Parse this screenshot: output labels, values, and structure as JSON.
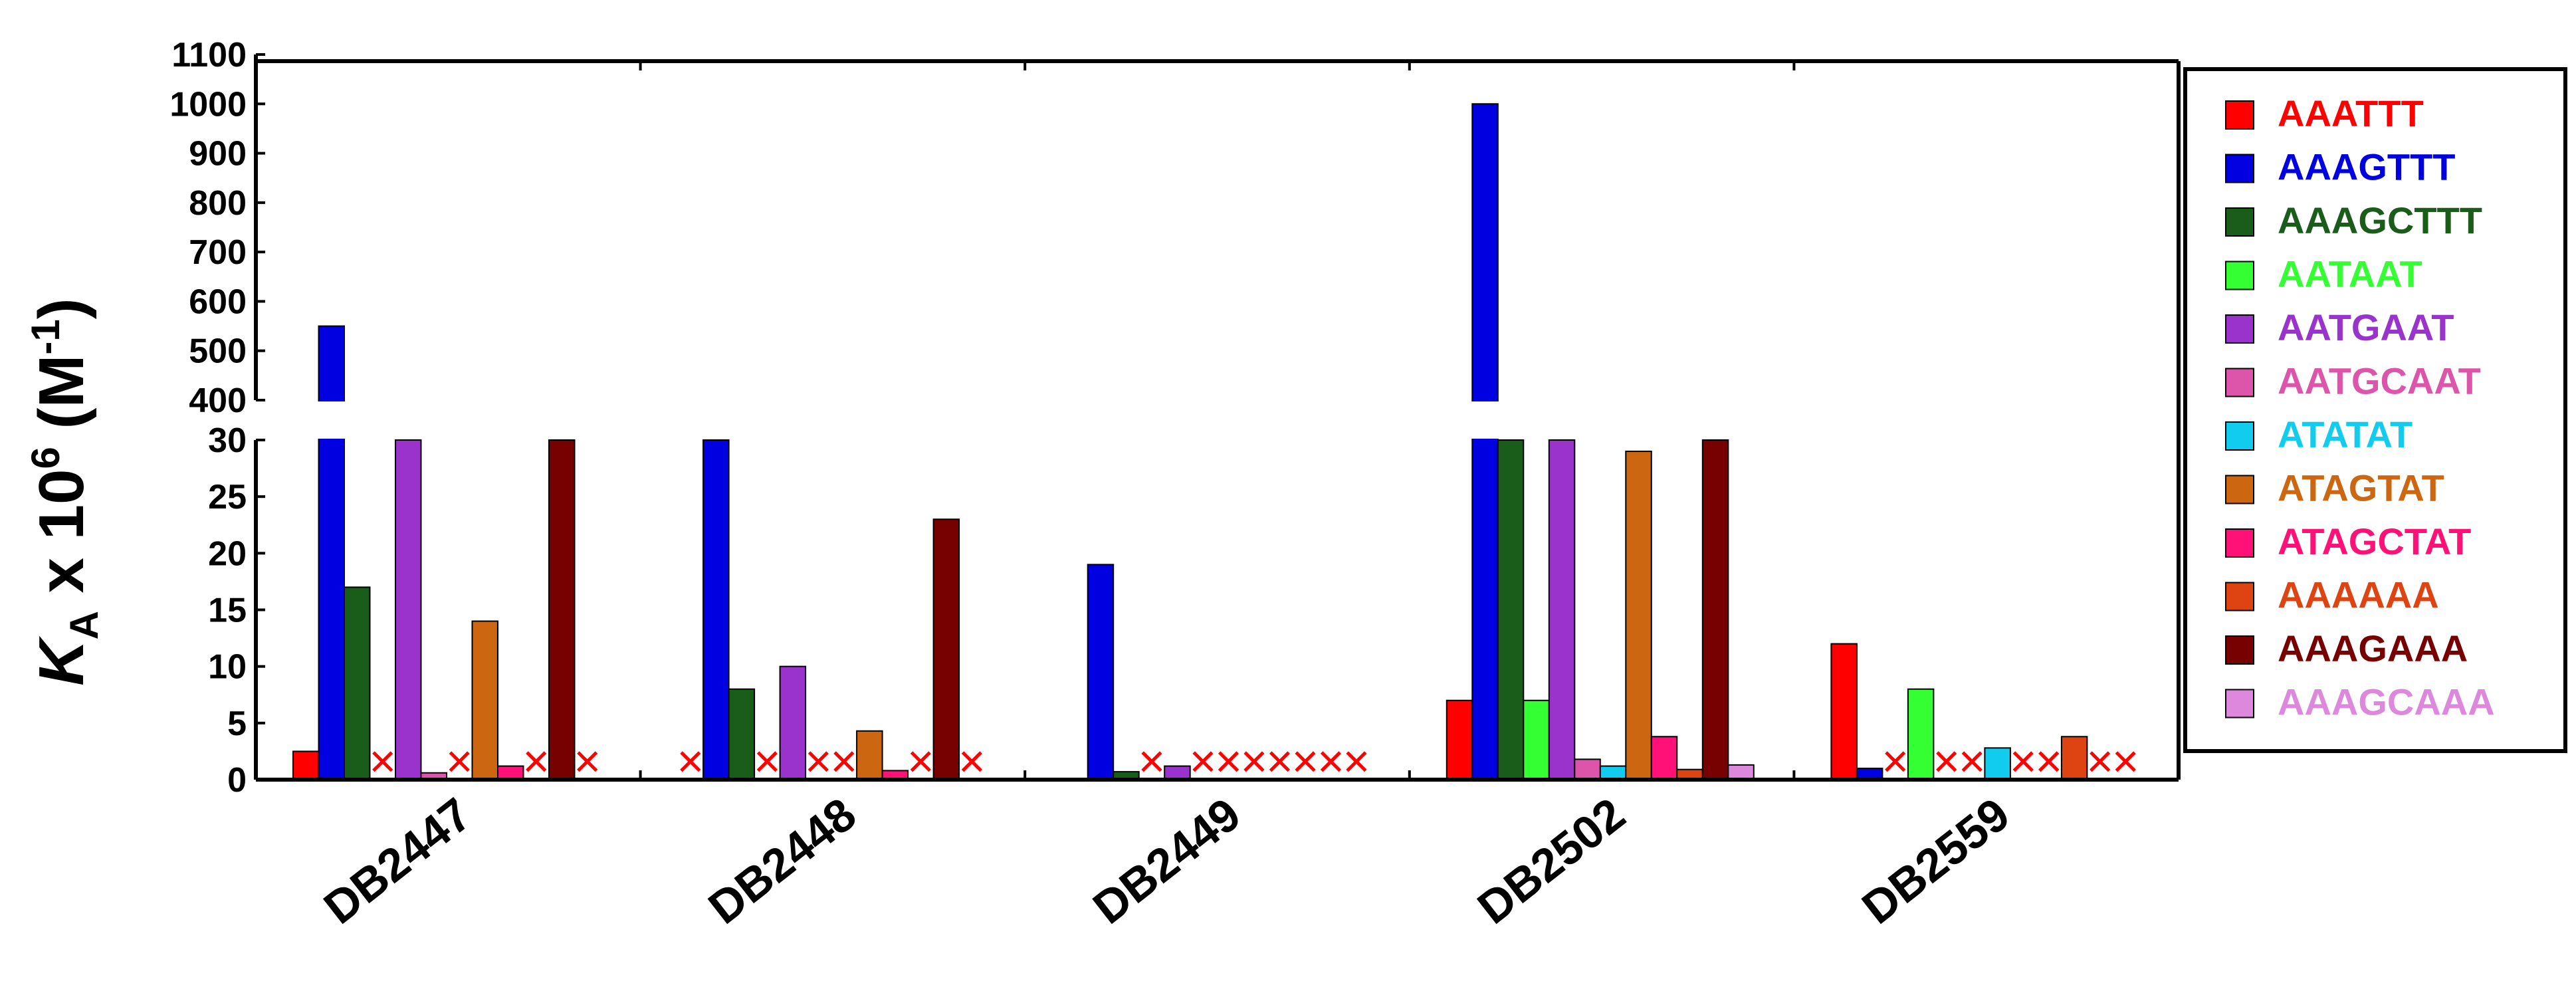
{
  "chart_data": {
    "type": "bar",
    "ylabel": {
      "symbol": "K",
      "subscript": "A",
      "rest": " x 10",
      "exponent": "6",
      "unit_open": " (M",
      "unit_exp": "-1",
      "unit_close": ")"
    },
    "axis_break": true,
    "upper_axis": {
      "ylim": [
        400,
        1100
      ],
      "ticks": [
        "400",
        "500",
        "600",
        "700",
        "800",
        "900",
        "1000",
        "1100"
      ]
    },
    "lower_axis": {
      "ylim": [
        0,
        30
      ],
      "ticks": [
        "0",
        "5",
        "10",
        "15",
        "20",
        "25",
        "30"
      ]
    },
    "categories": [
      "DB2447",
      "DB2448",
      "DB2449",
      "DB2502",
      "DB2559"
    ],
    "legend_position": "right",
    "not_detected_marker": "×",
    "not_detected_color": "#ff0000",
    "series": [
      {
        "name": "AAATTT",
        "color": "#ff0000",
        "values": [
          2.5,
          "x",
          null,
          7,
          12
        ]
      },
      {
        "name": "AAAGTTT",
        "color": "#0000e0",
        "values": [
          550,
          31,
          19,
          1000,
          1
        ]
      },
      {
        "name": "AAAGCTTT",
        "color": "#1a5c1a",
        "values": [
          17,
          8,
          0.7,
          31,
          "x"
        ]
      },
      {
        "name": "AATAAT",
        "color": "#33ff33",
        "values": [
          "x",
          "x",
          "x",
          7,
          8
        ]
      },
      {
        "name": "AATGAAT",
        "color": "#9933cc",
        "values": [
          31,
          10,
          1.2,
          31,
          "x"
        ]
      },
      {
        "name": "AATGCAAT",
        "color": "#dd55aa",
        "values": [
          0.6,
          "x",
          "x",
          1.8,
          "x"
        ]
      },
      {
        "name": "ATATAT",
        "color": "#11ccee",
        "values": [
          "x",
          "x",
          "x",
          1.2,
          2.8
        ]
      },
      {
        "name": "ATAGTAT",
        "color": "#cc6611",
        "values": [
          14,
          4.3,
          "x",
          29,
          "x"
        ]
      },
      {
        "name": "ATAGCTAT",
        "color": "#ff1177",
        "values": [
          1.2,
          0.8,
          "x",
          3.8,
          "x"
        ]
      },
      {
        "name": "AAAAAA",
        "color": "#dd4411",
        "values": [
          "x",
          "x",
          "x",
          0.9,
          3.8
        ]
      },
      {
        "name": "AAAGAAA",
        "color": "#770000",
        "values": [
          31,
          23,
          "x",
          31,
          "x"
        ]
      },
      {
        "name": "AAAGCAAA",
        "color": "#dd88dd",
        "values": [
          "x",
          "x",
          "x",
          1.3,
          "x"
        ]
      }
    ]
  }
}
